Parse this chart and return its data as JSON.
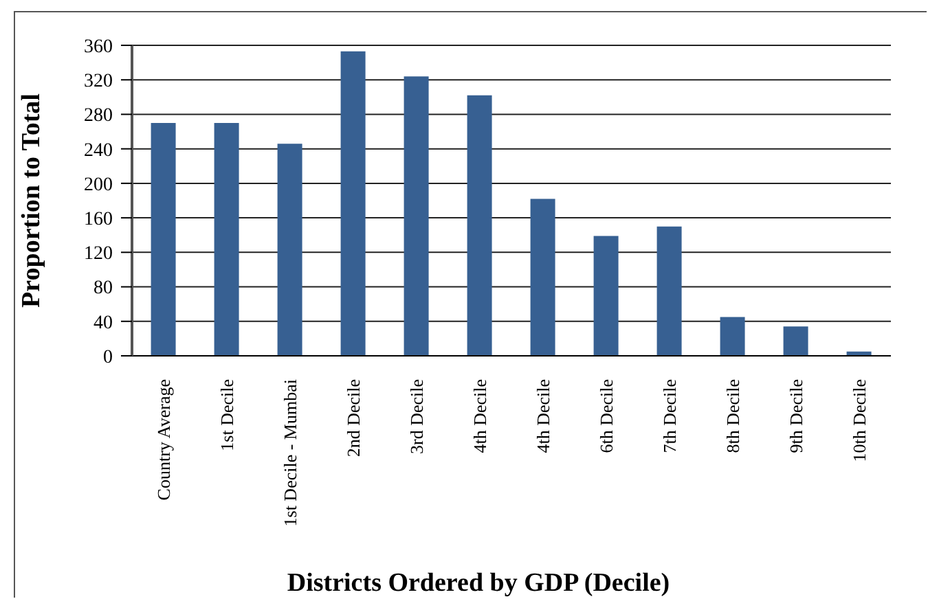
{
  "chart_data": {
    "type": "bar",
    "xlabel": "Districts Ordered by GDP (Decile)",
    "ylabel": "Proportion to Total",
    "categories": [
      "Country Average",
      "1st Decile",
      "1st Decile - Mumbai",
      "2nd Decile",
      "3rd Decile",
      "4th Decile",
      "4th Decile",
      "6th Decile",
      "7th Decile",
      "8th Decile",
      "9th Decile",
      "10th Decile"
    ],
    "values": [
      270,
      270,
      246,
      353,
      324,
      302,
      182,
      139,
      150,
      45,
      34,
      5
    ],
    "color": "#376092",
    "ylim": [
      0,
      360
    ],
    "yticks": [
      0,
      40,
      80,
      120,
      160,
      200,
      240,
      280,
      320,
      360
    ],
    "grid": "y"
  }
}
